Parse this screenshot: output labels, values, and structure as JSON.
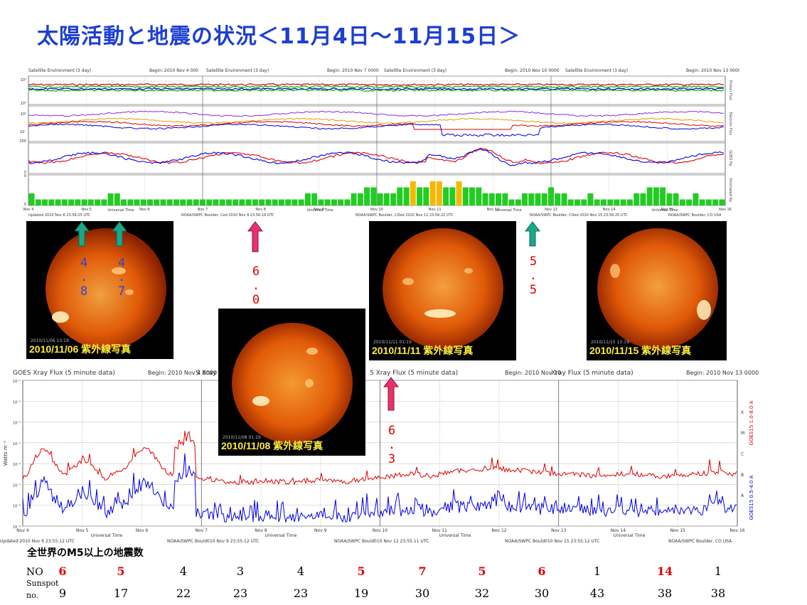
{
  "title": "太陽活動と地震の状況＜11月4日～11月15日＞",
  "chart_data": [
    {
      "type": "line",
      "name_printed": "Satellite Environment (3 day)",
      "panel_headers": [
        {
          "title": "Satellite Environment (3 day)",
          "begin": "Begin:  2010 Nov 4 000"
        },
        {
          "title": "Satellite Environment (3 day)",
          "begin": "Begin:  2010 Nov 7 0000"
        },
        {
          "title": "Satellite Environment (3 day)",
          "begin": "Begin:  2010 Nov 10 0000"
        },
        {
          "title": "Satellite Environment (3 day)",
          "begin": "Begin:  2010 Nov 13 0000 UTC"
        }
      ],
      "days": [
        "Nov 4",
        "Nov 5",
        "Nov 6",
        "Nov 7",
        "Nov 8",
        "Nov 9",
        "Nov 10",
        "Nov 11",
        "Nov 12",
        "Nov 13",
        "Nov 14",
        "Nov 15",
        "Nov 16"
      ],
      "strip_labels": [
        "Proton Flux",
        "Electron Flux",
        "GOES Hp",
        "Estimated Kp"
      ],
      "xlabel": "Universal Time",
      "kp_bars": [
        2,
        1,
        1,
        1,
        1,
        1,
        1,
        1,
        1,
        1,
        1,
        1,
        2,
        2,
        1,
        1,
        1,
        1,
        1,
        1,
        1,
        1,
        1,
        1,
        1,
        1,
        1,
        1,
        1,
        1,
        1,
        1,
        1,
        1,
        1,
        1,
        1,
        1,
        1,
        1,
        1,
        1,
        2,
        2,
        1,
        1,
        1,
        1,
        1,
        2,
        2,
        3,
        3,
        2,
        2,
        2,
        3,
        3,
        4,
        3,
        3,
        4,
        4,
        3,
        3,
        4,
        3,
        3,
        3,
        2,
        2,
        2,
        2,
        1,
        1,
        2,
        2,
        2,
        2,
        3,
        2,
        2,
        1,
        1,
        1,
        2,
        1,
        1,
        1,
        1,
        1,
        1,
        2,
        2,
        3,
        3,
        3,
        2,
        2,
        1,
        1,
        2,
        1,
        1,
        1,
        1
      ],
      "footers": [
        "Updated 2010 Nov  6 23:56:25 UTC",
        "NOAA/SWPC Boulder, Ced 2010 Nov  9 23:56:19 UTC",
        "NOAA/SWPC Boulder, COed 2010 Nov 12 23:56:22 UTC",
        "NOAA/SWPC Boulder, COed 2010 Nov 15 23:56:25 UTC",
        "NOAA/SWPC Boulder, CO USA"
      ]
    },
    {
      "type": "line",
      "panel_headers": [
        {
          "title": "GOES Xray Flux (5 minute data)",
          "begin": "Begin:  2010 Nov  4 0000 UTC"
        },
        {
          "title": "S Xray Flux (5 minute data)",
          "begin": ""
        },
        {
          "title": "S Xray Flux (5 minute data)",
          "begin": "Begin:  2010 Nov 10"
        },
        {
          "title": "Xray Flux (5 minute data)",
          "begin": "Begin:  2010 Nov 13 0000 UTC"
        }
      ],
      "ylabel": "Watts m⁻²",
      "yscale": "log",
      "ylim": [
        1e-09,
        0.01
      ],
      "ytick_labels": [
        "10⁻²",
        "10⁻³",
        "10⁻⁴",
        "10⁻⁵",
        "10⁻⁶",
        "10⁻⁷",
        "10⁻⁸",
        "10⁻⁹"
      ],
      "class_labels": [
        "X",
        "M",
        "C",
        "B",
        "A"
      ],
      "days": [
        "Nov 4",
        "Nov 5",
        "Nov 6",
        "Nov 7",
        "Nov 8",
        "Nov 9",
        "Nov 10",
        "Nov 11",
        "Nov 12",
        "Nov 13",
        "Nov 14",
        "Nov 15",
        "Nov 16"
      ],
      "xlabel": "Universal Time",
      "series": [
        {
          "name": "GOES15 1.0-8.0 A",
          "color": "#e00000"
        },
        {
          "name": "GOES15 0.5-4.0 A",
          "color": "#0000e0"
        }
      ],
      "long_channel_log10": [
        -6.8,
        -5.2,
        -6.6,
        -5.8,
        -6.7,
        -6.2,
        -5.1,
        -6.4,
        -6.8,
        -6.7,
        -6.9,
        -6.9,
        -6.8,
        -6.9,
        -6.8,
        -6.8,
        -6.9,
        -6.7,
        -6.6,
        -6.5,
        -6.6,
        -6.4,
        -6.3,
        -6.2,
        -6.3,
        -6.4,
        -6.5,
        -6.5,
        -6.6,
        -6.5,
        -6.5,
        -6.6,
        -6.6,
        -6.5,
        -6.4,
        -6.5
      ],
      "footers": [
        "Updated 2010 Nov  6 23:55:12 UTC",
        "NOAA/SWPC Bould010 Nov  9 23:55:12 UTC",
        "NOAA/SWPC Bould010 Nov 12 23:55:11 UTC",
        "NOAA/SWPC Bould010 Nov 15 23:55:12 UTC",
        "NOAA/SWPC Boulder, CO USA"
      ]
    }
  ],
  "sun_images": [
    {
      "caption": "2010/11/06 紫外線写真",
      "stamp": "2010/11/06 13:19"
    },
    {
      "caption": "2010/11/08 紫外線写真",
      "stamp": "2010/11/08 01:19"
    },
    {
      "caption": "2010/11/11 紫外線写真",
      "stamp": "2010/11/11 01:19"
    },
    {
      "caption": "2010/11/15 紫外線写真",
      "stamp": "2010/11/15 13:19"
    }
  ],
  "markers": [
    {
      "value": "4.8",
      "chars": "4\n.\n8",
      "color": "#2a43d8",
      "arrow": "#1aa889"
    },
    {
      "value": "4.7",
      "chars": "4\n.\n7",
      "color": "#2a43d8",
      "arrow": "#1aa889"
    },
    {
      "value": "6.0",
      "chars": "6\n.\n0",
      "color": "#e00000",
      "arrow": "#e8336c"
    },
    {
      "value": "5.5",
      "chars": "5\n.\n5",
      "color": "#e00000",
      "arrow": "#1aa889"
    },
    {
      "value": "6.3",
      "chars": "6\n.\n3",
      "color": "#e00000",
      "arrow": "#e8336c"
    }
  ],
  "quake_table": {
    "title": "全世界のM5以上の地震数",
    "no_label": "NO",
    "sunspot_label": "Sunspot",
    "sunspot_label2": "no.",
    "no_values": [
      {
        "v": "6",
        "red": true
      },
      {
        "v": "5",
        "red": true
      },
      {
        "v": "4",
        "red": false
      },
      {
        "v": "3",
        "red": false
      },
      {
        "v": "4",
        "red": false
      },
      {
        "v": "5",
        "red": true
      },
      {
        "v": "7",
        "red": true
      },
      {
        "v": "5",
        "red": true
      },
      {
        "v": "6",
        "red": true
      },
      {
        "v": "1",
        "red": false
      },
      {
        "v": "14",
        "red": true
      },
      {
        "v": "1",
        "red": false
      }
    ],
    "sunspot_values": [
      "9",
      "17",
      "22",
      "23",
      "23",
      "19",
      "30",
      "32",
      "30",
      "43",
      "38",
      "38"
    ]
  }
}
